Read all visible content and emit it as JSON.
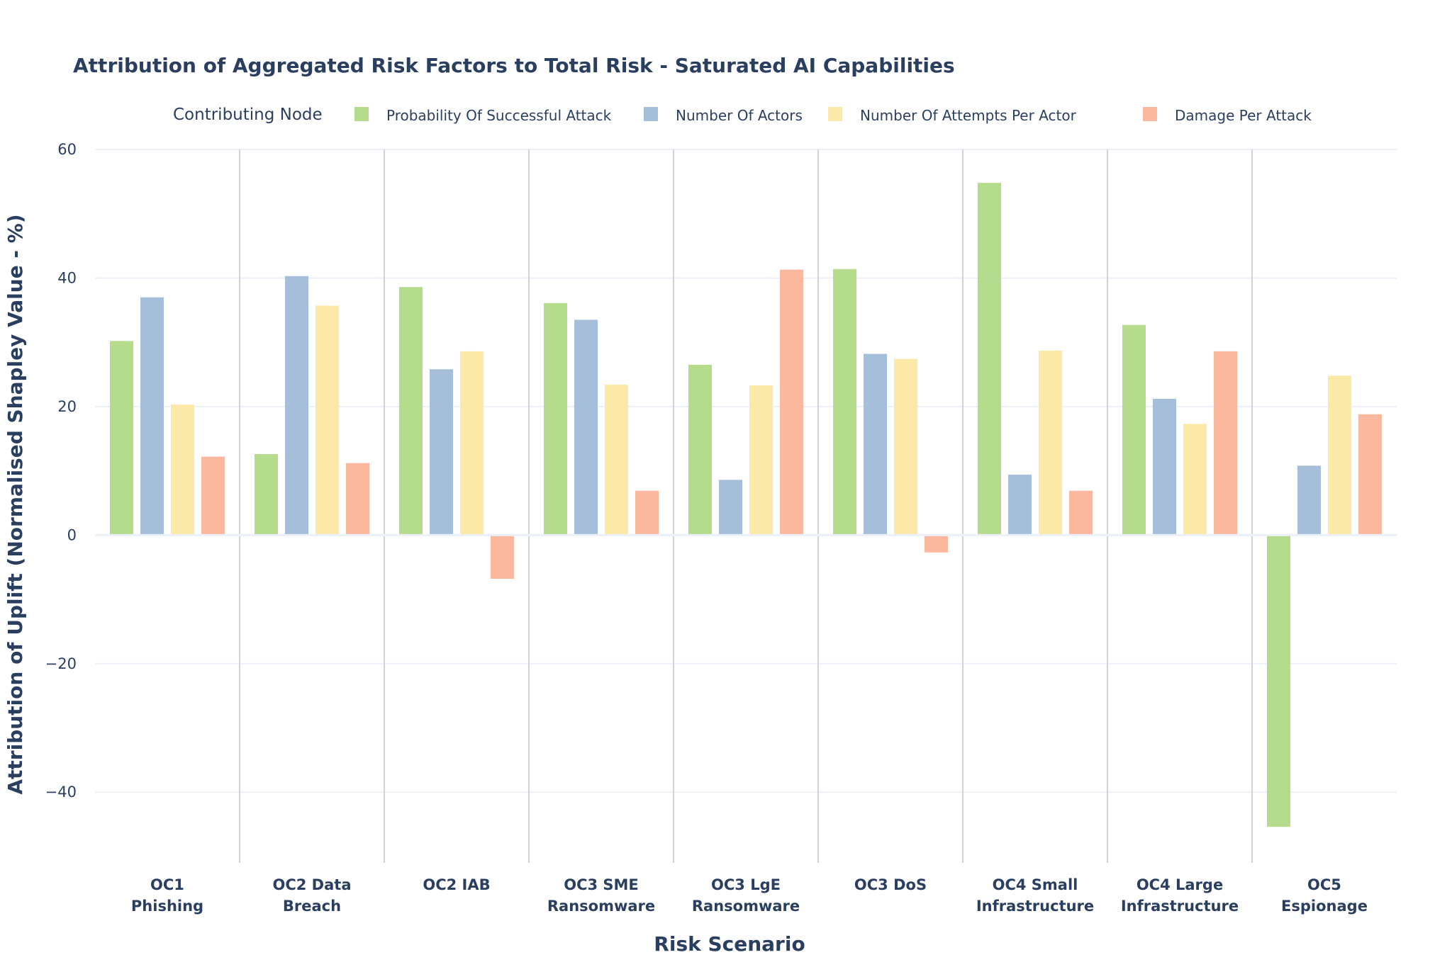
{
  "chart_data": {
    "type": "bar",
    "title": "Attribution of Aggregated Risk Factors to Total Risk - Saturated AI Capabilities",
    "xlabel": "Risk Scenario",
    "ylabel": "Attribution of Uplift (Normalised Shapley Value - %)",
    "ylim": [
      -51,
      60
    ],
    "yticks": [
      60,
      40,
      20,
      0,
      -20,
      -40
    ],
    "ytick_labels": [
      "60",
      "40",
      "20",
      "0",
      "−20",
      "−40"
    ],
    "legend_title": "Contributing Node",
    "legend_position": "top",
    "categories": [
      [
        "OC1",
        "Phishing"
      ],
      [
        "OC2 Data",
        "Breach"
      ],
      [
        "OC2 IAB"
      ],
      [
        "OC3 SME",
        "Ransomware"
      ],
      [
        "OC3 LgE",
        "Ransomware"
      ],
      [
        "OC3 DoS"
      ],
      [
        "OC4 Small",
        "Infrastructure"
      ],
      [
        "OC4 Large",
        "Infrastructure"
      ],
      [
        "OC5",
        "Espionage"
      ]
    ],
    "series": [
      {
        "name": "Probability Of Successful Attack",
        "color": "#b5dc8d",
        "values": [
          30.2,
          12.6,
          38.6,
          36.1,
          26.5,
          41.4,
          54.8,
          32.7,
          -45.4
        ]
      },
      {
        "name": "Number Of Actors",
        "color": "#a5bfdb",
        "values": [
          37.0,
          40.3,
          25.8,
          33.5,
          8.6,
          28.2,
          9.4,
          21.2,
          10.8
        ]
      },
      {
        "name": "Number Of Attempts Per Actor",
        "color": "#fde9a7",
        "values": [
          20.3,
          35.7,
          28.6,
          23.4,
          23.3,
          27.4,
          28.7,
          17.3,
          24.8
        ]
      },
      {
        "name": "Damage Per Attack",
        "color": "#fcb79f",
        "values": [
          12.2,
          11.2,
          -6.8,
          6.9,
          41.3,
          -2.7,
          6.9,
          28.6,
          18.8
        ]
      }
    ]
  }
}
